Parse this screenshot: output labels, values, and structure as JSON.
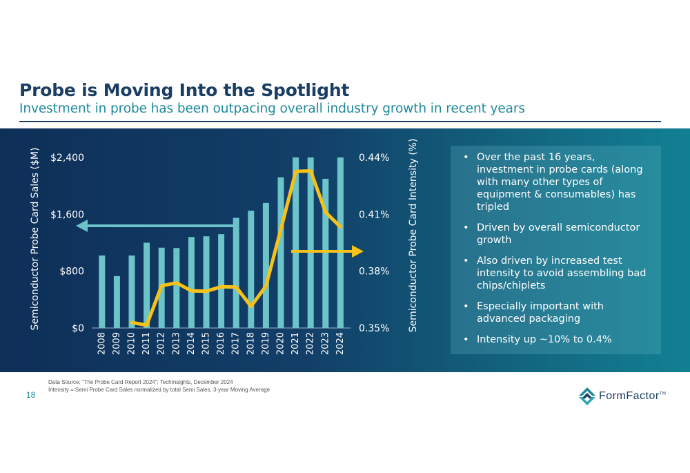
{
  "slide": {
    "title": "Probe is Moving Into the Spotlight",
    "subtitle": "Investment in probe has been outpacing overall industry growth in recent years",
    "page_number": "18",
    "footnotes": [
      "Data Source: “The Probe Card Report 2024”; TechInsights, December 2024",
      "Intensity = Semi Probe Card Sales normalized by total Semi Sales, 3-year Moving Average"
    ],
    "bullets": [
      "Over the past 16 years, investment in probe cards (along with many other types of equipment & consumables) has tripled",
      "Driven by overall semiconductor growth",
      "Also driven by increased test intensity to avoid assembling bad chips/chiplets",
      "Especially important with advanced packaging",
      "Intensity up ~10% to 0.4%"
    ],
    "logo": {
      "name": "formfactor-logo",
      "text": "FormFactor",
      "trademark": "TM"
    }
  },
  "colors": {
    "title": "#1a3e63",
    "subtitle": "#1d8a9a",
    "bar": "#6cc3c9",
    "line": "#f6c21a",
    "arrow_left": "#6cc3c9",
    "arrow_right": "#f6c21a"
  },
  "chart_data": {
    "type": "bar",
    "categories": [
      "2008",
      "2009",
      "2010",
      "2011",
      "2012",
      "2013",
      "2014",
      "2015",
      "2016",
      "2017",
      "2018",
      "2019",
      "2020",
      "2021",
      "2022",
      "2023",
      "2024"
    ],
    "series": [
      {
        "type": "bar",
        "axis": "left",
        "values": [
          1020,
          730,
          1020,
          1200,
          1130,
          1125,
          1280,
          1290,
          1320,
          1550,
          1650,
          1760,
          2120,
          2400,
          2400,
          2100,
          2400
        ]
      },
      {
        "type": "line",
        "axis": "right",
        "values": [
          null,
          null,
          0.3529,
          0.3515,
          0.3723,
          0.3738,
          0.3696,
          0.3694,
          0.3718,
          0.3716,
          0.3614,
          0.3721,
          0.402,
          0.4326,
          0.4329,
          0.4111,
          0.4033
        ]
      }
    ],
    "ylabel": "Semiconductor Probe Card Sales ($M)",
    "y2label": "Semiconductor Probe Card Intensity (%)",
    "ylim": [
      0,
      2400
    ],
    "y2lim": [
      0.35,
      0.44
    ],
    "yticks": [
      "$0",
      "$800",
      "$1,600",
      "$2,400"
    ],
    "y2ticks": [
      "0.35%",
      "0.38%",
      "0.41%",
      "0.44%"
    ],
    "grid": false,
    "annotations": [
      "left-arrow pointing to left axis",
      "right-arrow pointing to right axis"
    ]
  }
}
